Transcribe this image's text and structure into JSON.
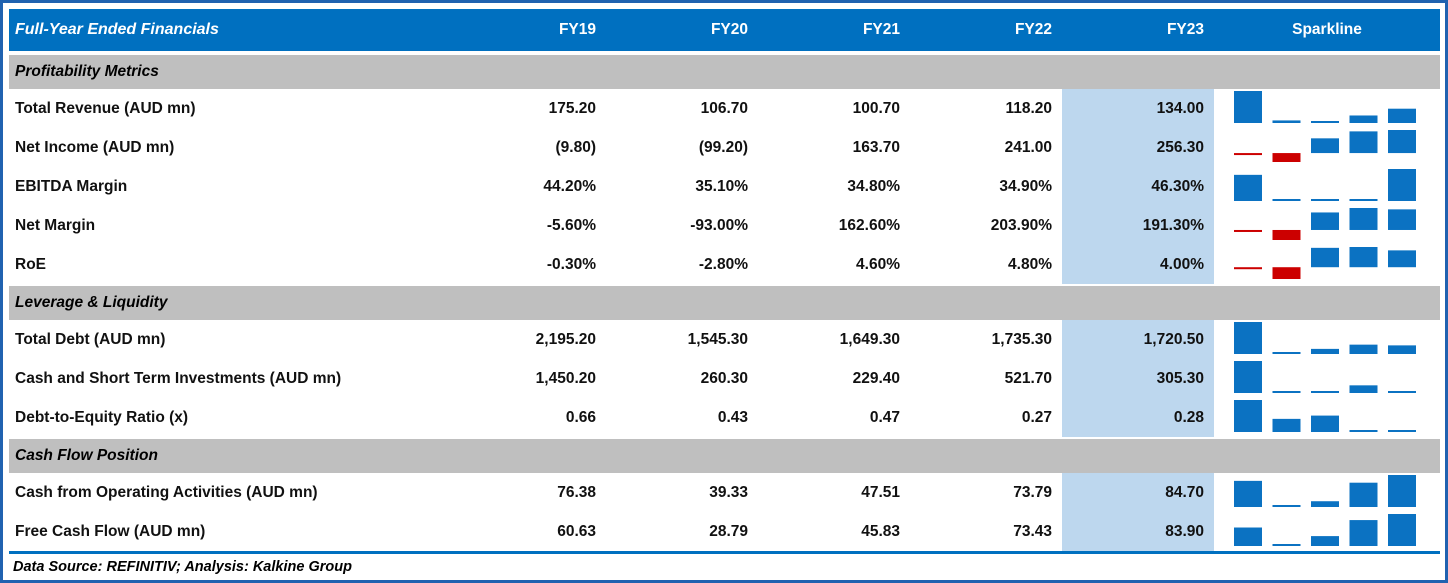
{
  "table": {
    "title": "Full-Year Ended Financials",
    "columns": [
      "FY19",
      "FY20",
      "FY21",
      "FY22",
      "FY23"
    ],
    "sparkline_header": "Sparkline",
    "sections": [
      {
        "label": "Profitability Metrics",
        "rows": [
          {
            "label": "Total Revenue (AUD mn)",
            "cells": [
              "175.20",
              "106.70",
              "100.70",
              "118.20",
              "134.00"
            ],
            "values": [
              175.2,
              106.7,
              100.7,
              118.2,
              134.0
            ]
          },
          {
            "label": "Net Income (AUD mn)",
            "cells": [
              "(9.80)",
              "(99.20)",
              "163.70",
              "241.00",
              "256.30"
            ],
            "values": [
              -9.8,
              -99.2,
              163.7,
              241.0,
              256.3
            ]
          },
          {
            "label": "EBITDA Margin",
            "cells": [
              "44.20%",
              "35.10%",
              "34.80%",
              "34.90%",
              "46.30%"
            ],
            "values": [
              44.2,
              35.1,
              34.8,
              34.9,
              46.3
            ]
          },
          {
            "label": "Net Margin",
            "cells": [
              "-5.60%",
              "-93.00%",
              "162.60%",
              "203.90%",
              "191.30%"
            ],
            "values": [
              -5.6,
              -93.0,
              162.6,
              203.9,
              191.3
            ]
          },
          {
            "label": "RoE",
            "cells": [
              "-0.30%",
              "-2.80%",
              "4.60%",
              "4.80%",
              "4.00%"
            ],
            "values": [
              -0.3,
              -2.8,
              4.6,
              4.8,
              4.0
            ]
          }
        ]
      },
      {
        "label": "Leverage & Liquidity",
        "rows": [
          {
            "label": "Total Debt (AUD mn)",
            "cells": [
              "2,195.20",
              "1,545.30",
              "1,649.30",
              "1,735.30",
              "1,720.50"
            ],
            "values": [
              2195.2,
              1545.3,
              1649.3,
              1735.3,
              1720.5
            ]
          },
          {
            "label": "Cash and Short Term Investments (AUD mn)",
            "cells": [
              "1,450.20",
              "260.30",
              "229.40",
              "521.70",
              "305.30"
            ],
            "values": [
              1450.2,
              260.3,
              229.4,
              521.7,
              305.3
            ]
          },
          {
            "label": "Debt-to-Equity Ratio (x)",
            "cells": [
              "0.66",
              "0.43",
              "0.47",
              "0.27",
              "0.28"
            ],
            "values": [
              0.66,
              0.43,
              0.47,
              0.27,
              0.28
            ]
          }
        ]
      },
      {
        "label": "Cash Flow Position",
        "rows": [
          {
            "label": "Cash from Operating Activities (AUD mn)",
            "cells": [
              "76.38",
              "39.33",
              "47.51",
              "73.79",
              "84.70"
            ],
            "values": [
              76.38,
              39.33,
              47.51,
              73.79,
              84.7
            ]
          },
          {
            "label": "Free Cash Flow (AUD mn)",
            "cells": [
              "60.63",
              "28.79",
              "45.83",
              "73.43",
              "83.90"
            ],
            "values": [
              60.63,
              28.79,
              45.83,
              73.43,
              83.9
            ]
          }
        ]
      }
    ],
    "footer": "Data Source: REFINITIV; Analysis: Kalkine Group"
  },
  "colors": {
    "header_bg": "#0070c0",
    "section_bg": "#bfbfbf",
    "fy23_highlight": "#bdd7ee",
    "spark_positive": "#0b72c2",
    "spark_negative": "#cc0000",
    "border": "#2062b0"
  }
}
